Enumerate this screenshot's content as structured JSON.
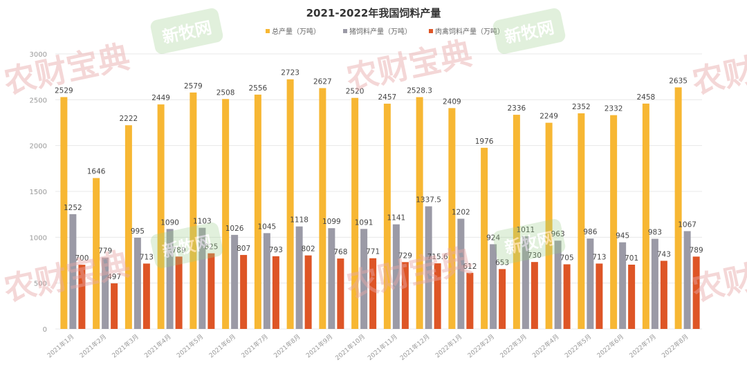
{
  "chart_data": {
    "type": "bar",
    "title": "2021-2022年我国饲料产量",
    "xlabel": "",
    "ylabel": "",
    "ylim": [
      0,
      3000
    ],
    "yticks": [
      0,
      500,
      1000,
      1500,
      2000,
      2500,
      3000
    ],
    "grid": true,
    "legend_position": "top",
    "categories": [
      "2021年1月",
      "2021年2月",
      "2021年3月",
      "2021年4月",
      "2021年5月",
      "2021年6月",
      "2021年7月",
      "2021年8月",
      "2021年9月",
      "2021年10月",
      "2021年11月",
      "2021年12月",
      "2022年1月",
      "2022年2月",
      "2022年3月",
      "2022年4月",
      "2022年5月",
      "2022年6月",
      "2022年7月",
      "2022年8月"
    ],
    "series": [
      {
        "name": "总产量（万吨）",
        "color": "#F7B733",
        "values": [
          2529,
          1646,
          2222,
          2449,
          2579,
          2508,
          2556,
          2723,
          2627,
          2520,
          2457,
          2528.3,
          2409,
          1976,
          2336,
          2249,
          2352,
          2332,
          2458,
          2635
        ],
        "labels": [
          "2529",
          "1646",
          "2222",
          "2449",
          "2579",
          "2508",
          "2556",
          "2723",
          "2627",
          "2520",
          "2457",
          "2528.3",
          "2409",
          "1976",
          "2336",
          "2249",
          "2352",
          "2332",
          "2458",
          "2635"
        ]
      },
      {
        "name": "猪饲料产量（万吨）",
        "color": "#9B9AA6",
        "values": [
          1252,
          779,
          995,
          1090,
          1103,
          1026,
          1045,
          1118,
          1099,
          1091,
          1141,
          1337.5,
          1202,
          924,
          1011,
          963,
          986,
          945,
          983,
          1067
        ],
        "labels": [
          "1252",
          "779",
          "995",
          "1090",
          "1103",
          "1026",
          "1045",
          "1118",
          "1099",
          "1091",
          "1141",
          "1337.5",
          "1202",
          "924",
          "1011",
          "963",
          "986",
          "945",
          "983",
          "1067"
        ]
      },
      {
        "name": "肉禽饲料产量（万吨）",
        "color": "#DE5526",
        "values": [
          700,
          497,
          713,
          789,
          825,
          807,
          793,
          802,
          768,
          771,
          729,
          715.6,
          612,
          653,
          730,
          705,
          713,
          701,
          743,
          789
        ],
        "labels": [
          "700",
          "497",
          "713",
          "789",
          "825",
          "807",
          "793",
          "802",
          "768",
          "771",
          "729",
          "715.6",
          "612",
          "653",
          "730",
          "705",
          "713",
          "701",
          "743",
          "789"
        ]
      }
    ]
  },
  "watermarks": {
    "red_text": "农财宝典",
    "green_text": "新牧网"
  },
  "colors": {
    "grid": "#E8E8E8",
    "axis_text": "#999999",
    "label_text": "#444444",
    "title_text": "#333333",
    "watermark_red": "#E8A8A8",
    "watermark_green": "#9ACD8A"
  }
}
